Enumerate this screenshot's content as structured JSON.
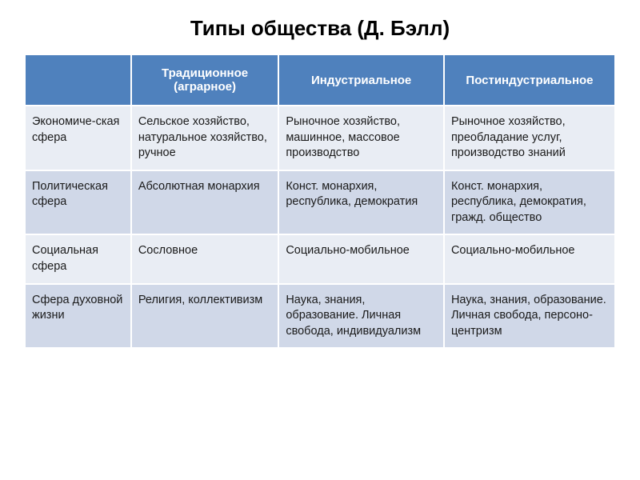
{
  "title": "Типы общества (Д. Бэлл)",
  "table": {
    "columns": [
      {
        "label": "",
        "width_pct": 18
      },
      {
        "label": "Традиционное (аграрное)",
        "width_pct": 25
      },
      {
        "label": "Индустриальное",
        "width_pct": 28
      },
      {
        "label": "Постиндустриальное",
        "width_pct": 29
      }
    ],
    "header_bg": "#4f81bd",
    "header_text_color": "#ffffff",
    "row_light_bg": "#e9edf4",
    "row_dark_bg": "#d0d8e8",
    "border_color": "#ffffff",
    "body_fontsize": 14.5,
    "header_fontsize": 15,
    "rows": [
      {
        "band": "light",
        "cells": [
          "Экономиче-ская сфера",
          "Сельское хозяйство, натуральное хозяйство, ручное",
          "Рыночное хозяйство, машинное, массовое производство",
          "Рыночное хозяйство, преобладание услуг, производство знаний"
        ]
      },
      {
        "band": "dark",
        "cells": [
          "Политическая сфера",
          "Абсолютная монархия",
          "Конст. монархия, республика, демократия",
          "Конст. монархия, республика, демократия, гражд. общество"
        ]
      },
      {
        "band": "light",
        "cells": [
          "Социальная сфера",
          "Сословное",
          "Социально-мобильное",
          "Социально-мобильное"
        ]
      },
      {
        "band": "dark",
        "cells": [
          "Сфера духовной жизни",
          "Религия, коллективизм",
          "Наука, знания, образование. Личная свобода, индивидуализм",
          "Наука, знания, образование. Личная свобода, персоно-центризм"
        ]
      }
    ]
  }
}
